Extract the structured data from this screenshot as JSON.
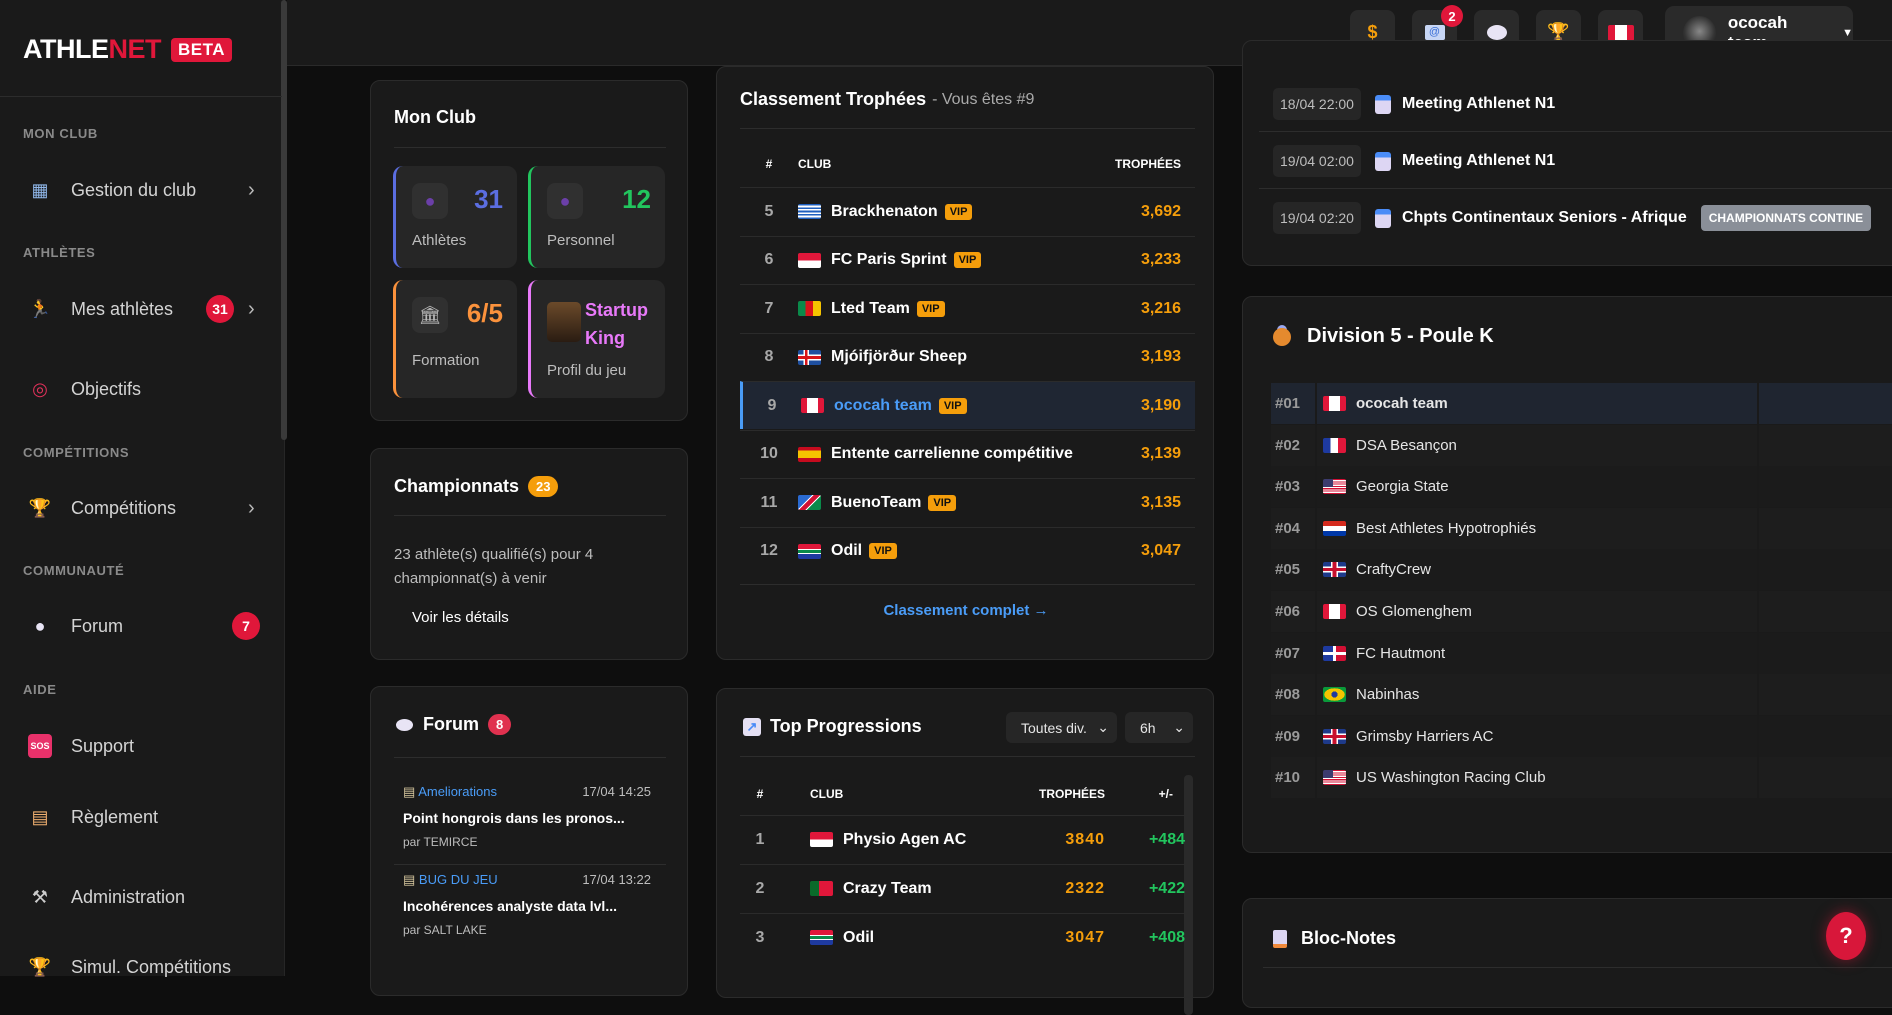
{
  "brand": {
    "name_a": "ATHLE",
    "name_b": "NET",
    "badge": "BETA",
    "accent": "#e0173a"
  },
  "sidebar": {
    "sections": [
      "MON CLUB",
      "ATHLÈTES",
      "COMPÉTITIONS",
      "COMMUNAUTÉ",
      "AIDE"
    ],
    "items": [
      {
        "label": "Gestion du club",
        "icon": "building-icon",
        "chevron": true
      },
      {
        "label": "Mes athlètes",
        "icon": "runner-icon",
        "badge": "31",
        "chevron": true
      },
      {
        "label": "Objectifs",
        "icon": "target-icon"
      },
      {
        "label": "Compétitions",
        "icon": "trophy-icon",
        "chevron": true
      },
      {
        "label": "Forum",
        "icon": "speech-bubble-icon",
        "badge": "7"
      },
      {
        "label": "Support",
        "icon": "sos-icon"
      },
      {
        "label": "Règlement",
        "icon": "scroll-icon"
      },
      {
        "label": "Administration",
        "icon": "tools-icon"
      },
      {
        "label": "Simul. Compétitions",
        "icon": "trophy-icon"
      }
    ]
  },
  "topbar": {
    "icons": [
      "money-bag-icon",
      "mail-icon",
      "speech-bubble-icon",
      "trophy-icon",
      "canada-flag-icon"
    ],
    "mail_badge": "2",
    "user": "ococah team"
  },
  "mon_club": {
    "title": "Mon Club",
    "tiles": [
      {
        "value": "31",
        "label": "Athlètes",
        "color": "#5b6ee1"
      },
      {
        "value": "12",
        "label": "Personnel",
        "color": "#22c55e"
      },
      {
        "value": "6/5",
        "label": "Formation",
        "color": "#fb923c"
      },
      {
        "value": "Startup King",
        "label": "Profil du jeu",
        "color": "#e879f9"
      }
    ]
  },
  "championnats": {
    "title": "Championnats",
    "badge": "23",
    "text": "23 athlète(s) qualifié(s) pour 4 championnat(s) à venir",
    "link": "Voir les détails"
  },
  "forum": {
    "title": "Forum",
    "badge": "8",
    "posts": [
      {
        "category": "Ameliorations",
        "time": "17/04 14:25",
        "title": "Point hongrois dans les pronos...",
        "author": "par TEMIRCE"
      },
      {
        "category": "BUG DU JEU",
        "time": "17/04 13:22",
        "title": "Incohérences analyste data lvl...",
        "author": "par SALT LAKE"
      }
    ]
  },
  "classement": {
    "title": "Classement Trophées",
    "subtitle": "- Vous êtes #9",
    "headers": [
      "#",
      "CLUB",
      "TROPHÉES"
    ],
    "rows": [
      {
        "rank": "5",
        "flag": "gr",
        "club": "Brackhenaton",
        "vip": true,
        "trophies": "3,692"
      },
      {
        "rank": "6",
        "flag": "id",
        "club": "FC Paris Sprint",
        "vip": true,
        "trophies": "3,233"
      },
      {
        "rank": "7",
        "flag": "cm",
        "club": "Lted Team",
        "vip": true,
        "trophies": "3,216"
      },
      {
        "rank": "8",
        "flag": "is",
        "club": "Mjóifjörður Sheep",
        "vip": false,
        "trophies": "3,193"
      },
      {
        "rank": "9",
        "flag": "ca",
        "club": "ococah team",
        "vip": true,
        "trophies": "3,190",
        "me": true
      },
      {
        "rank": "10",
        "flag": "es",
        "club": "Entente carrelienne compétitive",
        "vip": false,
        "trophies": "3,139"
      },
      {
        "rank": "11",
        "flag": "na",
        "club": "BuenoTeam",
        "vip": true,
        "trophies": "3,135"
      },
      {
        "rank": "12",
        "flag": "za",
        "club": "Odil",
        "vip": true,
        "trophies": "3,047"
      }
    ],
    "vip_label": "VIP",
    "link": "Classement complet →"
  },
  "progressions": {
    "title": "Top Progressions",
    "filter_division": "Toutes div.",
    "filter_period": "6h",
    "headers": [
      "#",
      "CLUB",
      "TROPHÉES",
      "+/-"
    ],
    "rows": [
      {
        "rank": "1",
        "flag": "id",
        "club": "Physio Agen AC",
        "trophies": "3840",
        "delta": "+484"
      },
      {
        "rank": "2",
        "flag": "pt",
        "club": "Crazy Team",
        "trophies": "2322",
        "delta": "+422"
      },
      {
        "rank": "3",
        "flag": "za",
        "club": "Odil",
        "trophies": "3047",
        "delta": "+408"
      }
    ]
  },
  "events": [
    {
      "date": "18/04 22:00",
      "name": "Meeting Athlenet N1"
    },
    {
      "date": "19/04 02:00",
      "name": "Meeting Athlenet N1"
    },
    {
      "date": "19/04 02:20",
      "name": "Chpts Continentaux Seniors - Afrique",
      "tag": "CHAMPIONNATS CONTINE"
    }
  ],
  "division": {
    "title": "Division 5 - Poule K",
    "rows": [
      {
        "rank": "#01",
        "flag": "ca",
        "club": "ococah team",
        "me": true
      },
      {
        "rank": "#02",
        "flag": "fr",
        "club": "DSA Besançon"
      },
      {
        "rank": "#03",
        "flag": "us",
        "club": "Georgia State"
      },
      {
        "rank": "#04",
        "flag": "py",
        "club": "Best Athletes Hypotrophiés"
      },
      {
        "rank": "#05",
        "flag": "gb",
        "club": "CraftyCrew"
      },
      {
        "rank": "#06",
        "flag": "ca",
        "club": "OS Glomenghem"
      },
      {
        "rank": "#07",
        "flag": "do",
        "club": "FC Hautmont"
      },
      {
        "rank": "#08",
        "flag": "br",
        "club": "Nabinhas"
      },
      {
        "rank": "#09",
        "flag": "gb",
        "club": "Grimsby Harriers AC"
      },
      {
        "rank": "#10",
        "flag": "us",
        "club": "US Washington Racing Club"
      }
    ]
  },
  "notes": {
    "title": "Bloc-Notes"
  },
  "help": {
    "label": "?"
  }
}
